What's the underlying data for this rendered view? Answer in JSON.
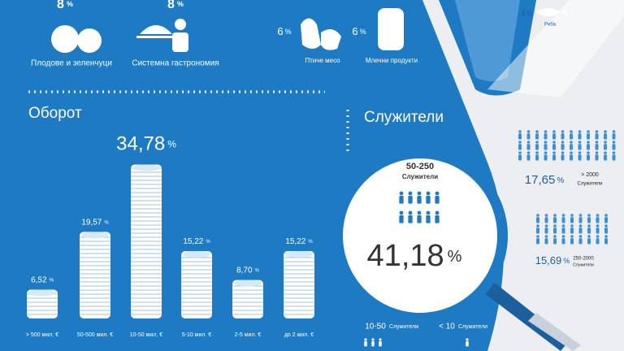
{
  "categories_top": [
    {
      "value": "8",
      "unit": "%",
      "label": "Плодове и зеленчуци"
    },
    {
      "value": "8",
      "unit": "%",
      "label": "Системна гастрономия"
    },
    {
      "value": "6",
      "unit": "%",
      "label": "Птиче месо"
    },
    {
      "value": "6",
      "unit": "%",
      "label": "Млечни продукти"
    },
    {
      "value": "4",
      "unit": "%",
      "label": "Риба"
    }
  ],
  "turnover": {
    "title": "Оборот",
    "unit": "%",
    "items": [
      {
        "label": "> 500 мил. €",
        "value": {
          "value": 6.52,
          "label": "6,52"
        }
      },
      {
        "label": "50-500 мил. €",
        "value": {
          "value": 19.57,
          "label": "19,57"
        }
      },
      {
        "label": "10-50 мил. €",
        "value": {
          "value": 34.78,
          "label": "34,78"
        }
      },
      {
        "label": "5-10 мил. €",
        "value": {
          "value": 15.22,
          "label": "15,22"
        }
      },
      {
        "label": "2-5 мил. €",
        "value": {
          "value": 8.7,
          "label": "8,70"
        }
      },
      {
        "label": "до 2 мил. €",
        "value": {
          "value": 15.22,
          "label": "15,22"
        }
      }
    ]
  },
  "employees": {
    "title": "Служители",
    "unit": "%",
    "main": {
      "range": "50-250",
      "label": "Служители",
      "value": "41,18"
    },
    "large": {
      "value": "17,65",
      "range": "> 2000",
      "label": "Служители"
    },
    "mid": {
      "value": "15,69",
      "range": "250-2000",
      "label": "Служители"
    },
    "small": {
      "range": "10-50",
      "label": "Служители"
    },
    "micro": {
      "range": "< 10",
      "label": "Служители"
    }
  }
}
